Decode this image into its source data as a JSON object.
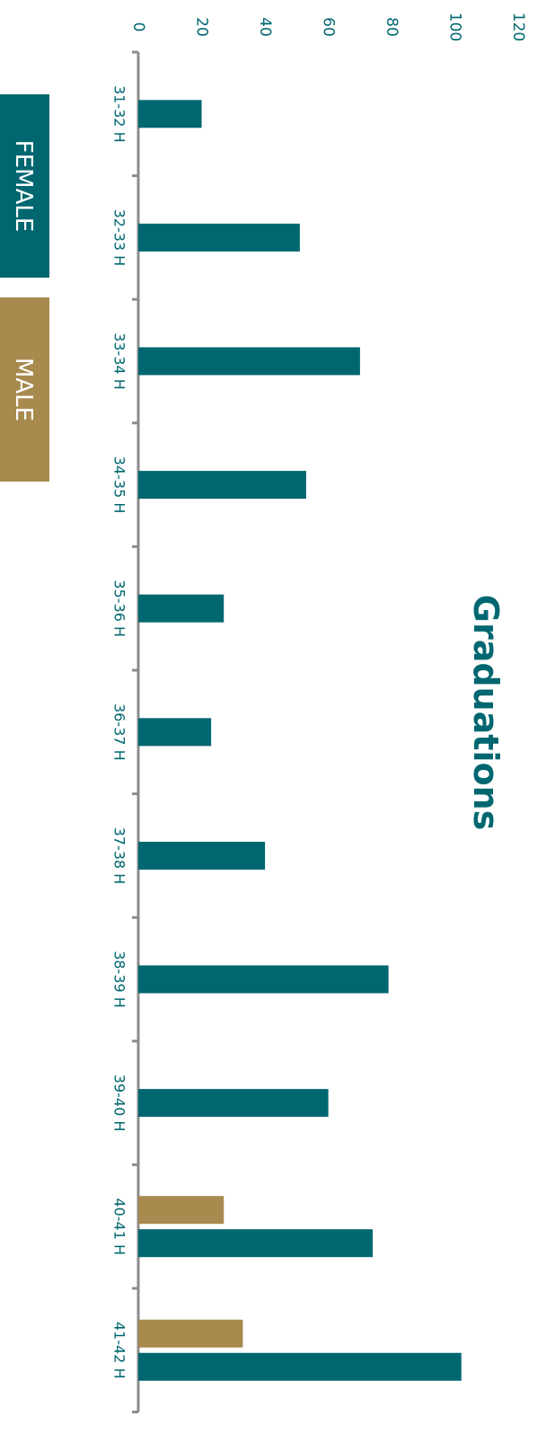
{
  "chart_data": {
    "type": "bar",
    "orientation": "horizontal",
    "title": "Graduations",
    "categories": [
      "31-32 H",
      "32-33 H",
      "33-34 H",
      "34-35 H",
      "35-36 H",
      "36-37 H",
      "37-38 H",
      "38-39 H",
      "39-40 H",
      "40-41 H",
      "41-42 H"
    ],
    "series": [
      {
        "name": "FEMALE",
        "color": "#006770",
        "values": [
          20,
          51,
          70,
          53,
          27,
          23,
          40,
          79,
          60,
          74,
          102
        ]
      },
      {
        "name": "MALE",
        "color": "#A88A4E",
        "values": [
          null,
          null,
          null,
          null,
          null,
          null,
          null,
          null,
          null,
          27,
          33
        ]
      }
    ],
    "value_axis": {
      "range": [
        0,
        120
      ],
      "ticks": [
        0,
        20,
        40,
        60,
        80,
        100,
        120
      ]
    },
    "grid": false,
    "legend_position": "left"
  },
  "colors": {
    "text": "#006770",
    "axis": "#8C8C8C"
  }
}
